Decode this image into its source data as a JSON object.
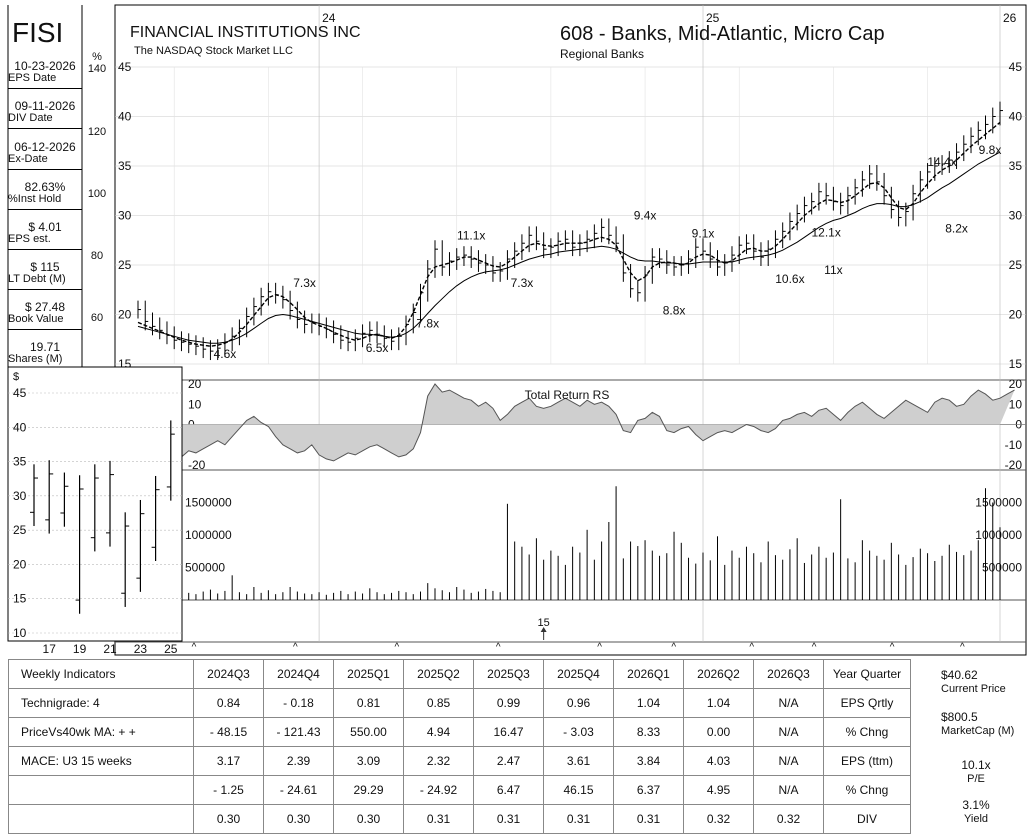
{
  "header": {
    "ticker": "FISI",
    "company": "FINANCIAL INSTITUTIONS INC",
    "exchange": "The NASDAQ Stock Market LLC",
    "group": "608 - Banks, Mid-Atlantic, Micro Cap",
    "industry": "Regional Banks"
  },
  "sidebar": [
    {
      "value": "10-23-2026",
      "label": "EPS Date"
    },
    {
      "value": "09-11-2026",
      "label": "DIV Date"
    },
    {
      "value": "06-12-2026",
      "label": "Ex-Date"
    },
    {
      "value": "82.63%",
      "label": "%Inst Hold"
    },
    {
      "value": "$ 4.01",
      "label": "EPS est."
    },
    {
      "value": "$ 115",
      "label": "LT Debt (M)"
    },
    {
      "value": "$ 27.48",
      "label": "Book Value"
    },
    {
      "value": "19.71",
      "label": "Shares (M)"
    }
  ],
  "chart_data": [
    {
      "type": "line",
      "name": "weekly price",
      "x_labels": [
        "24",
        "25",
        "26"
      ],
      "ylim": [
        15,
        45
      ],
      "y_ticks": [
        "15",
        "20",
        "25",
        "30",
        "35",
        "40",
        "45"
      ],
      "pct_axis_label": "%",
      "pct_ticks": [
        "140",
        "120",
        "100",
        "80",
        "60"
      ],
      "close": [
        20.5,
        19.3,
        18.8,
        18.4,
        17.9,
        17.4,
        17.2,
        17.0,
        16.8,
        16.5,
        16.3,
        16.6,
        17.2,
        17.8,
        18.6,
        19.8,
        20.8,
        21.8,
        22.3,
        22.0,
        21.5,
        20.4,
        19.5,
        19.0,
        19.2,
        18.8,
        18.5,
        18.0,
        17.4,
        17.2,
        17.6,
        18.1,
        18.4,
        18.0,
        17.6,
        17.3,
        17.8,
        19.0,
        20.2,
        22.2,
        24.6,
        26.6,
        24.8,
        25.4,
        25.8,
        26.0,
        25.6,
        25.2,
        25.0,
        24.2,
        24.4,
        25.6,
        26.4,
        27.2,
        28.0,
        27.4,
        26.6,
        26.8,
        27.4,
        27.6,
        26.8,
        27.2,
        27.6,
        28.2,
        28.8,
        28.0,
        27.2,
        24.2,
        22.6,
        22.2,
        24.0,
        25.8,
        25.6,
        25.0,
        24.8,
        25.0,
        25.6,
        26.8,
        26.4,
        25.6,
        24.8,
        25.2,
        26.0,
        27.0,
        27.2,
        26.4,
        25.8,
        26.6,
        27.6,
        28.4,
        29.4,
        30.2,
        31.0,
        31.4,
        32.4,
        32.0,
        31.4,
        31.0,
        32.0,
        32.8,
        33.6,
        34.2,
        33.4,
        32.0,
        30.6,
        29.8,
        30.4,
        32.2,
        33.6,
        34.4,
        35.0,
        35.2,
        35.6,
        36.4,
        37.2,
        38.0,
        38.6,
        39.2,
        40.0,
        40.6
      ],
      "ma_short": [
        19.2,
        18.9,
        18.6,
        18.3,
        18.0,
        17.7,
        17.4,
        17.2,
        17.0,
        16.9,
        16.8,
        16.9,
        17.1,
        17.5,
        18.2,
        19.0,
        19.9,
        20.8,
        21.7,
        22.0,
        21.8,
        21.2,
        20.5,
        19.7,
        19.2,
        18.9,
        18.6,
        18.2,
        17.9,
        17.6,
        17.4,
        17.6,
        17.9,
        18.0,
        17.8,
        17.6,
        17.9,
        18.8,
        20.2,
        22.0,
        23.8,
        24.8,
        25.0,
        25.2,
        25.5,
        25.8,
        25.8,
        25.5,
        25.2,
        24.9,
        24.8,
        25.2,
        25.8,
        26.4,
        27.0,
        27.2,
        27.0,
        26.9,
        27.0,
        27.2,
        27.2,
        27.2,
        27.3,
        27.6,
        27.8,
        27.6,
        27.0,
        25.6,
        24.2,
        23.4,
        23.8,
        24.8,
        25.2,
        25.3,
        25.2,
        25.0,
        25.2,
        25.8,
        26.1,
        26.0,
        25.5,
        25.2,
        25.4,
        26.0,
        26.6,
        26.7,
        26.4,
        26.4,
        26.9,
        27.6,
        28.4,
        29.2,
        30.0,
        30.6,
        31.2,
        31.6,
        31.5,
        31.3,
        31.5,
        32.0,
        32.6,
        33.2,
        33.3,
        32.8,
        31.8,
        30.8,
        30.6,
        31.2,
        32.3,
        33.2,
        34.0,
        34.6,
        35.0,
        35.6,
        36.3,
        37.0,
        37.6,
        38.2,
        38.8,
        39.4
      ],
      "ma_long": [
        18.8,
        18.6,
        18.4,
        18.2,
        18.0,
        17.8,
        17.6,
        17.4,
        17.3,
        17.2,
        17.1,
        17.1,
        17.2,
        17.4,
        17.7,
        18.1,
        18.6,
        19.1,
        19.6,
        19.9,
        20.0,
        19.9,
        19.7,
        19.5,
        19.3,
        19.1,
        18.9,
        18.7,
        18.5,
        18.3,
        18.1,
        18.0,
        18.0,
        17.9,
        17.8,
        17.7,
        17.8,
        18.1,
        18.6,
        19.3,
        20.1,
        20.9,
        21.6,
        22.3,
        22.9,
        23.4,
        23.8,
        24.1,
        24.3,
        24.4,
        24.5,
        24.7,
        25.0,
        25.3,
        25.6,
        25.8,
        26.0,
        26.1,
        26.3,
        26.4,
        26.5,
        26.6,
        26.7,
        26.8,
        26.9,
        26.8,
        26.6,
        26.2,
        25.8,
        25.5,
        25.4,
        25.4,
        25.3,
        25.2,
        25.2,
        25.1,
        25.1,
        25.2,
        25.3,
        25.3,
        25.3,
        25.3,
        25.3,
        25.5,
        25.7,
        25.8,
        25.9,
        26.0,
        26.2,
        26.5,
        26.9,
        27.3,
        27.8,
        28.3,
        28.8,
        29.2,
        29.5,
        29.7,
        30.0,
        30.3,
        30.7,
        31.0,
        31.2,
        31.2,
        31.1,
        30.9,
        30.9,
        31.1,
        31.4,
        31.8,
        32.3,
        32.8,
        33.2,
        33.7,
        34.2,
        34.7,
        35.2,
        35.6,
        36.0,
        36.4
      ],
      "pe_annotations": [
        {
          "text": "4.6x",
          "week": 12,
          "y": 15.6
        },
        {
          "text": "7.3x",
          "week": 23,
          "y": 22.8
        },
        {
          "text": "6.5x",
          "week": 33,
          "y": 16.2
        },
        {
          "text": "7.8x",
          "week": 40,
          "y": 18.7
        },
        {
          "text": "11.1x",
          "week": 46,
          "y": 27.6
        },
        {
          "text": "7.3x",
          "week": 53,
          "y": 22.8
        },
        {
          "text": "9.4x",
          "week": 70,
          "y": 29.6
        },
        {
          "text": "8.8x",
          "week": 74,
          "y": 20.0
        },
        {
          "text": "9.1x",
          "week": 78,
          "y": 27.8
        },
        {
          "text": "10.6x",
          "week": 90,
          "y": 23.2
        },
        {
          "text": "12.1x",
          "week": 95,
          "y": 27.9
        },
        {
          "text": "11x",
          "week": 96,
          "y": 24.1
        },
        {
          "text": "14.4x",
          "week": 111,
          "y": 35.0
        },
        {
          "text": "8.2x",
          "week": 113,
          "y": 28.3
        },
        {
          "text": "9.8x",
          "week": 125,
          "y": 36.2
        }
      ]
    },
    {
      "type": "area",
      "name": "Total Return RS",
      "title": "Total Return RS",
      "ylim": [
        -20,
        20
      ],
      "y_ticks": [
        "-20",
        "-10",
        "0",
        "10",
        "20"
      ],
      "values": [
        -18,
        -20,
        -21,
        -19,
        -17,
        -18,
        -16,
        -13,
        -14,
        -12,
        -10,
        -8,
        -10,
        -6,
        -2,
        2,
        4,
        1,
        -1,
        -6,
        -10,
        -12,
        -14,
        -13,
        -10,
        -15,
        -17,
        -18,
        -16,
        -14,
        -15,
        -13,
        -11,
        -10,
        -12,
        -14,
        -16,
        -15,
        -12,
        -4,
        14,
        20,
        16,
        17,
        15,
        13,
        12,
        9,
        11,
        8,
        2,
        5,
        9,
        11,
        13,
        9,
        8,
        9,
        11,
        13,
        11,
        9,
        12,
        10,
        11,
        9,
        5,
        -3,
        -4,
        2,
        3,
        6,
        4,
        -3,
        -4,
        -2,
        -1,
        -5,
        -8,
        -6,
        -4,
        -3,
        -4,
        -2,
        0,
        -1,
        -3,
        -4,
        -2,
        2,
        3,
        5,
        6,
        4,
        7,
        8,
        5,
        2,
        6,
        9,
        11,
        8,
        5,
        3,
        6,
        9,
        12,
        10,
        8,
        6,
        11,
        13,
        12,
        9,
        10,
        14,
        17,
        15,
        12,
        13,
        15,
        17
      ]
    },
    {
      "type": "bar",
      "name": "volume",
      "ylim": [
        0,
        1800000
      ],
      "y_ticks": [
        "500000",
        "1000000",
        "1500000"
      ],
      "values": [
        80000,
        60000,
        120000,
        90000,
        150000,
        100000,
        70000,
        110000,
        90000,
        130000,
        160000,
        100000,
        140000,
        380000,
        120000,
        90000,
        200000,
        110000,
        150000,
        90000,
        120000,
        200000,
        130000,
        100000,
        90000,
        120000,
        80000,
        110000,
        140000,
        90000,
        130000,
        100000,
        180000,
        120000,
        90000,
        110000,
        140000,
        120000,
        90000,
        130000,
        260000,
        180000,
        150000,
        120000,
        200000,
        160000,
        110000,
        130000,
        170000,
        140000,
        120000,
        1480000,
        900000,
        820000,
        700000,
        950000,
        620000,
        760000,
        680000,
        540000,
        820000,
        730000,
        1080000,
        620000,
        900000,
        1200000,
        1750000,
        640000,
        900000,
        830000,
        920000,
        760000,
        680000,
        720000,
        1050000,
        880000,
        650000,
        560000,
        730000,
        610000,
        980000,
        540000,
        760000,
        650000,
        820000,
        720000,
        580000,
        900000,
        690000,
        620000,
        780000,
        950000,
        570000,
        700000,
        820000,
        650000,
        730000,
        1550000,
        640000,
        580000,
        920000,
        760000,
        680000,
        620000,
        880000,
        700000,
        540000,
        660000,
        790000,
        720000,
        600000,
        680000,
        850000,
        740000,
        690000,
        760000,
        920000,
        1720000,
        1500000,
        1120000
      ],
      "markers": [
        {
          "week": 56,
          "label": "15"
        }
      ]
    }
  ],
  "fundamentals": {
    "quarters": [
      "2024Q3",
      "2024Q4",
      "2025Q1",
      "2025Q2",
      "2025Q3",
      "2025Q4",
      "2026Q1",
      "2026Q2",
      "2026Q3"
    ],
    "row_labels": [
      "Weekly Indicators",
      "Technigrade: 4",
      "PriceVs40wk MA:  + +",
      "MACE: U3  15 weeks",
      "",
      ""
    ],
    "header_desc": "Year Quarter",
    "rows": [
      {
        "desc": "EPS Qrtly",
        "values": [
          "0.84",
          "- 0.18",
          "0.81",
          "0.85",
          "0.99",
          "0.96",
          "1.04",
          "1.04",
          "N/A"
        ]
      },
      {
        "desc": "% Chng",
        "values": [
          "- 48.15",
          "- 121.43",
          "550.00",
          "4.94",
          "16.47",
          "- 3.03",
          "8.33",
          "0.00",
          "N/A"
        ]
      },
      {
        "desc": "EPS (ttm)",
        "values": [
          "3.17",
          "2.39",
          "3.09",
          "2.32",
          "2.47",
          "3.61",
          "3.84",
          "4.03",
          "N/A"
        ]
      },
      {
        "desc": "% Chng",
        "values": [
          "- 1.25",
          "- 24.61",
          "29.29",
          "- 24.92",
          "6.47",
          "46.15",
          "6.37",
          "4.95",
          "N/A"
        ]
      },
      {
        "desc": "DIV",
        "values": [
          "0.30",
          "0.30",
          "0.30",
          "0.31",
          "0.31",
          "0.31",
          "0.31",
          "0.32",
          "0.32"
        ]
      }
    ]
  },
  "summary": {
    "price": "$40.62",
    "price_label": "Current Price",
    "mcap": "$800.5",
    "mcap_label": "MarketCap (M)",
    "pe": "10.1x",
    "pe_label": "P/E",
    "yield": "3.1%",
    "yield_label": "Yield"
  },
  "inset": {
    "currency": "$",
    "y_ticks": [
      "10",
      "15",
      "20",
      "25",
      "30",
      "35",
      "40",
      "45"
    ],
    "x_labels": [
      "17",
      "19",
      "21",
      "23",
      "25"
    ],
    "ranges": [
      {
        "year": 16,
        "low": 25.6,
        "high": 34.6
      },
      {
        "year": 17,
        "low": 24.5,
        "high": 35.2
      },
      {
        "year": 18,
        "low": 25.5,
        "high": 33.4
      },
      {
        "year": 19,
        "low": 12.8,
        "high": 33.0
      },
      {
        "year": 20,
        "low": 21.9,
        "high": 34.6
      },
      {
        "year": 21,
        "low": 22.6,
        "high": 35.1
      },
      {
        "year": 22,
        "low": 13.8,
        "high": 27.6
      },
      {
        "year": 23,
        "low": 16.0,
        "high": 29.4
      },
      {
        "year": 24,
        "low": 20.5,
        "high": 32.9
      },
      {
        "year": 25,
        "low": 29.3,
        "high": 41.0
      }
    ]
  }
}
